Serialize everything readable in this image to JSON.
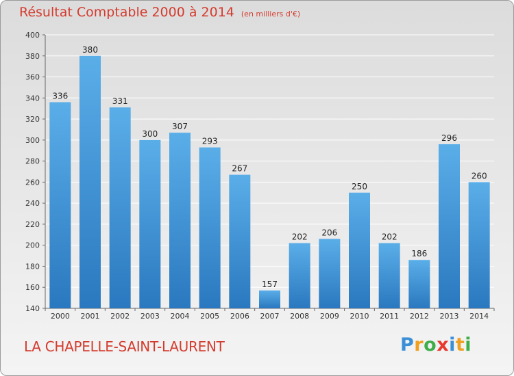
{
  "title": "Résultat Comptable 2000 à 2014",
  "title_unit": "(en milliers d'€)",
  "town": "LA CHAPELLE-SAINT-LAURENT",
  "logo": {
    "letters": [
      "P",
      "r",
      "o",
      "x",
      "i",
      "t",
      "i"
    ],
    "colors": [
      "#3a8fd6",
      "#f0a020",
      "#3fae49",
      "#e83a2e",
      "#3a8fd6",
      "#f0a020",
      "#3fae49"
    ]
  },
  "colors": {
    "bar": "#3d92d8",
    "title": "#d43b2e"
  },
  "chart_data": {
    "type": "bar",
    "title": "Résultat Comptable 2000 à 2014",
    "categories": [
      "2000",
      "2001",
      "2002",
      "2003",
      "2004",
      "2005",
      "2006",
      "2007",
      "2008",
      "2009",
      "2010",
      "2011",
      "2012",
      "2013",
      "2014"
    ],
    "values": [
      336,
      380,
      331,
      300,
      307,
      293,
      267,
      157,
      202,
      206,
      250,
      202,
      186,
      296,
      260
    ],
    "ylim": [
      140,
      400
    ],
    "yticks": [
      140,
      160,
      180,
      200,
      220,
      240,
      260,
      280,
      300,
      320,
      340,
      360,
      380,
      400
    ],
    "grid": true
  }
}
